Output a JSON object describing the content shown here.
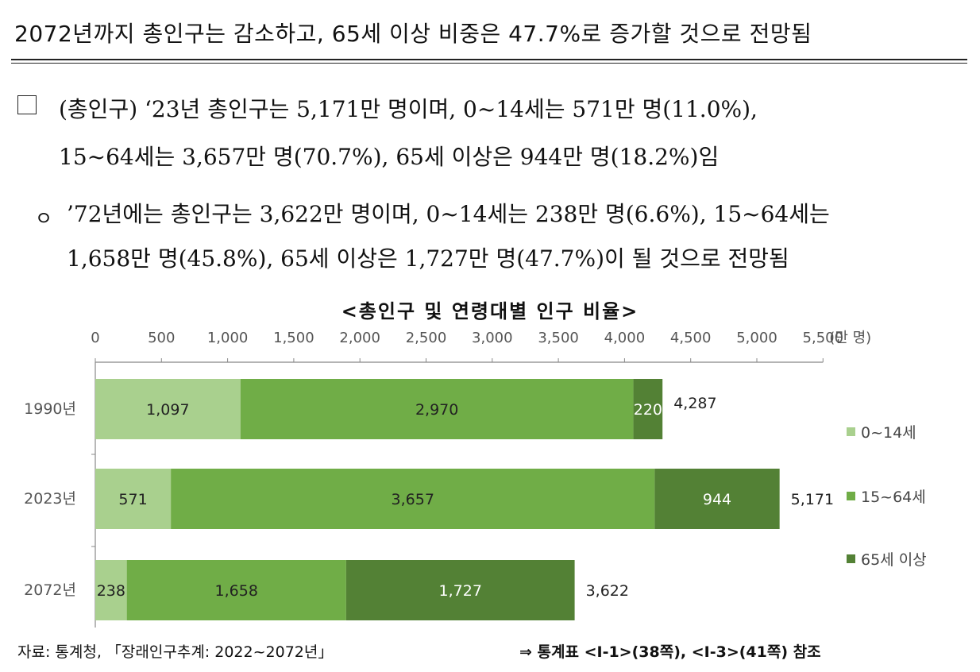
{
  "headline": "2072년까지 총인구는 감소하고, 65세 이상 비중은 47.7%로 증가할 것으로 전망됨",
  "para1": {
    "line1": "(총인구) ‘23년 총인구는 5,171만 명이며, 0~14세는 571만 명(11.0%),",
    "line2": "15~64세는 3,657만 명(70.7%), 65세 이상은 944만 명(18.2%)임"
  },
  "para2": {
    "bullet": "ㅇ",
    "line1": "’72년에는 총인구는 3,622만 명이며, 0~14세는 238만 명(6.6%), 15~64세는",
    "line2": "1,658만 명(45.8%), 65세 이상은 1,727만 명(47.7%)이 될 것으로 전망됨"
  },
  "chart_title": "<총인구 및 연령대별 인구 비율>",
  "chart_data": {
    "type": "bar",
    "orientation": "horizontal",
    "stacked": true,
    "categories": [
      "1990년",
      "2023년",
      "2072년"
    ],
    "series": [
      {
        "name": "0~14세",
        "values": [
          1097,
          571,
          238
        ],
        "color": "#a9d08e"
      },
      {
        "name": "15~64세",
        "values": [
          2970,
          3657,
          1658
        ],
        "color": "#70ad47"
      },
      {
        "name": "65세 이상",
        "values": [
          220,
          944,
          1727
        ],
        "color": "#538135"
      }
    ],
    "totals": [
      4287,
      5171,
      3622
    ],
    "total_labels": [
      "4,287",
      "5,171",
      "3,622"
    ],
    "value_labels": [
      [
        "1,097",
        "2,970",
        "220"
      ],
      [
        "571",
        "3,657",
        "944"
      ],
      [
        "238",
        "1,658",
        "1,727"
      ]
    ],
    "xlim": [
      0,
      5500
    ],
    "xticks": [
      0,
      500,
      1000,
      1500,
      2000,
      2500,
      3000,
      3500,
      4000,
      4500,
      5000,
      5500
    ],
    "xtick_labels": [
      "0",
      "500",
      "1,000",
      "1,500",
      "2,000",
      "2,500",
      "3,000",
      "3,500",
      "4,000",
      "4,500",
      "5,000",
      "5,500"
    ],
    "unit": "(만 명)",
    "axis_position": "top",
    "grid": false,
    "legend_position": "right"
  },
  "source": "자료: 통계청, 「장래인구추계: 2022~2072년」",
  "reference": "⇒ 통계표 <Ⅰ-1>(38쪽), <Ⅰ-3>(41쪽) 참조"
}
